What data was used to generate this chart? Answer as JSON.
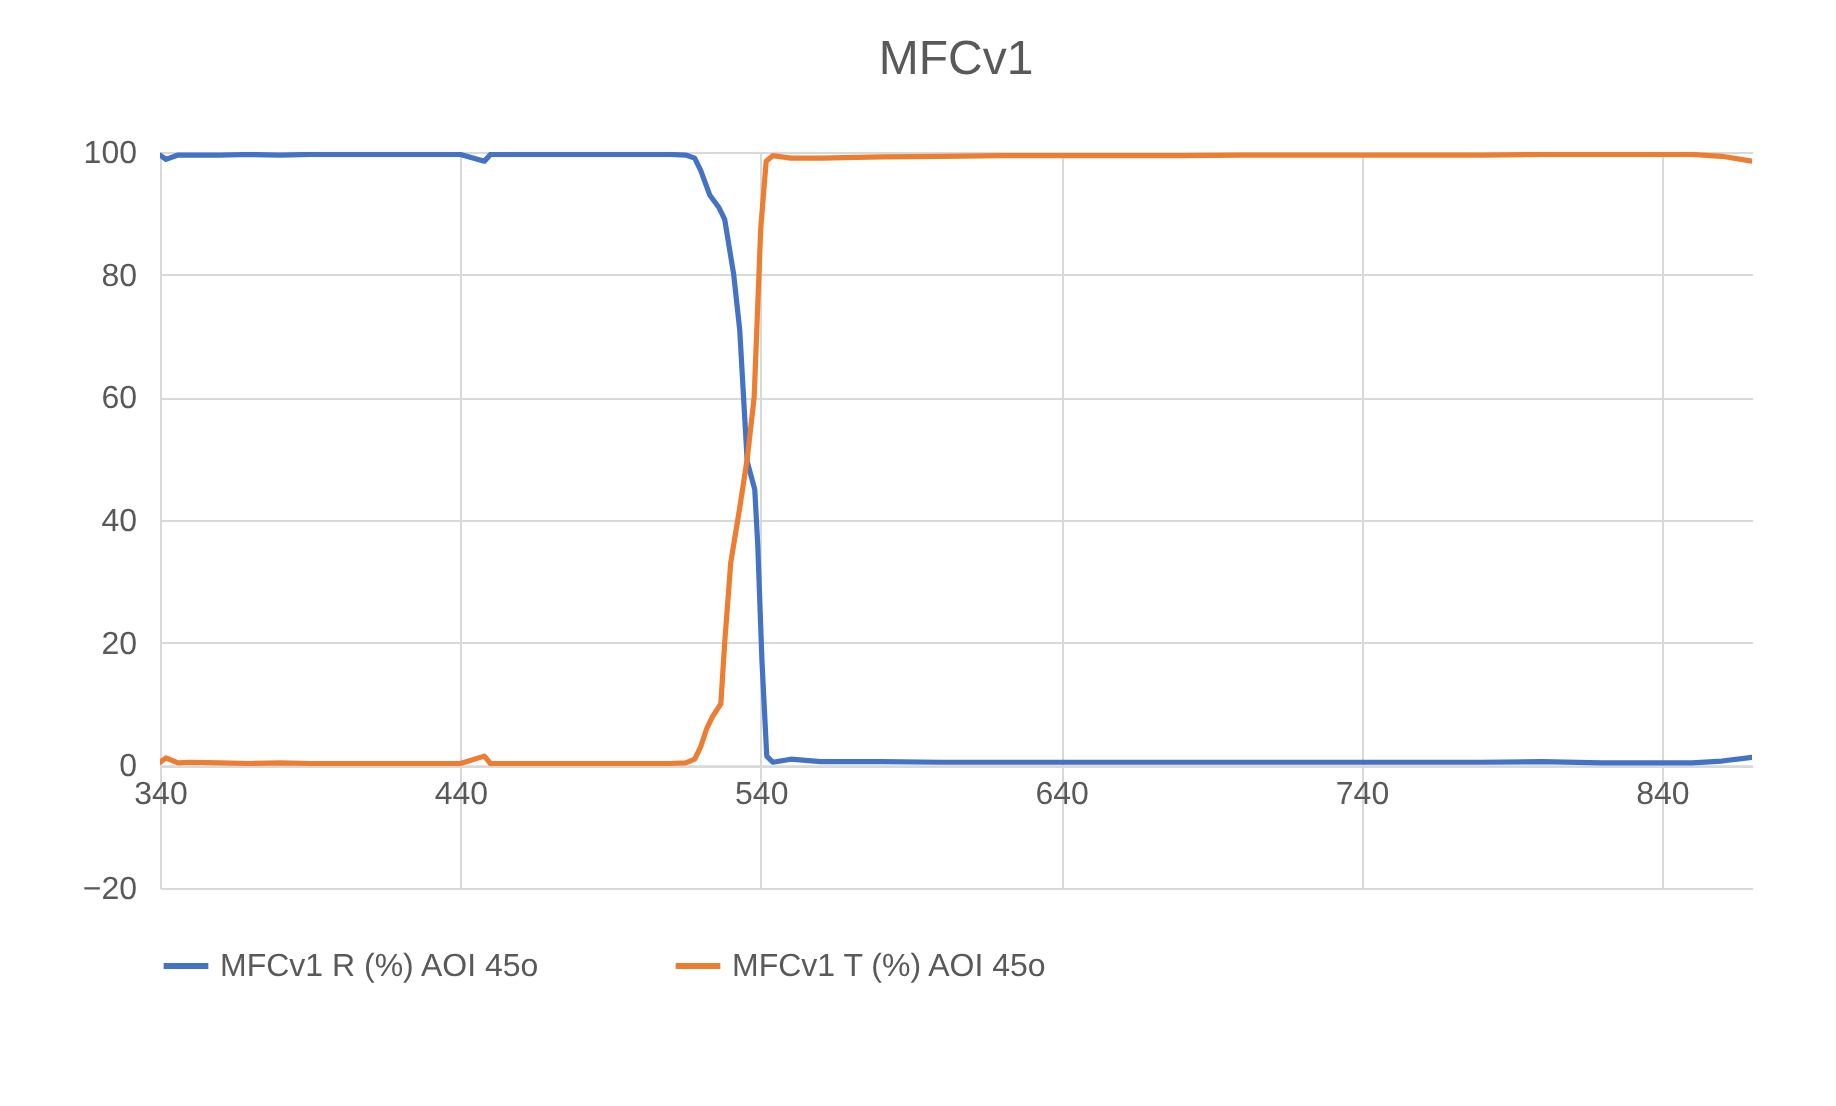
{
  "chart_data": {
    "type": "line",
    "title": "MFCv1",
    "xlim": [
      340,
      870
    ],
    "ylim": [
      -20,
      100
    ],
    "xticks": [
      340,
      440,
      540,
      640,
      740,
      840
    ],
    "yticks": [
      -20,
      0,
      20,
      40,
      60,
      80,
      100
    ],
    "grid": true,
    "legend": "bottom",
    "marker": "none",
    "line_style": "solid",
    "series": [
      {
        "name": "MFCv1 R (%) AOI 45o",
        "color": "#4472c4",
        "x": [
          340,
          342,
          346,
          350,
          360,
          370,
          380,
          390,
          400,
          410,
          420,
          430,
          440,
          448,
          450,
          460,
          470,
          480,
          490,
          500,
          510,
          515,
          518,
          520,
          523,
          526,
          528,
          531,
          533,
          535.5,
          538,
          539,
          540.4,
          542,
          544,
          550,
          560,
          580,
          600,
          620,
          640,
          660,
          680,
          700,
          720,
          740,
          760,
          780,
          800,
          820,
          840,
          850,
          860,
          870
        ],
        "values": [
          99.5,
          98.8,
          99.5,
          99.5,
          99.5,
          99.6,
          99.5,
          99.6,
          99.6,
          99.6,
          99.6,
          99.6,
          99.6,
          98.5,
          99.6,
          99.6,
          99.6,
          99.6,
          99.6,
          99.6,
          99.6,
          99.5,
          99,
          97,
          93,
          91,
          89,
          80,
          71,
          49.5,
          45,
          36,
          17,
          1.5,
          0.5,
          1,
          0.6,
          0.6,
          0.5,
          0.5,
          0.5,
          0.5,
          0.5,
          0.5,
          0.5,
          0.5,
          0.5,
          0.5,
          0.6,
          0.4,
          0.4,
          0.4,
          0.7,
          1.3
        ]
      },
      {
        "name": "MFCv1 T (%) AOI 45o",
        "color": "#ed7d31",
        "x": [
          340,
          342,
          346,
          350,
          360,
          370,
          380,
          390,
          400,
          410,
          420,
          430,
          440,
          448,
          450,
          460,
          470,
          480,
          490,
          500,
          510,
          515,
          518,
          520,
          522,
          524,
          526.7,
          528,
          530,
          533,
          535.5,
          537.8,
          539,
          540,
          541.8,
          544,
          550,
          560,
          580,
          600,
          620,
          640,
          660,
          680,
          700,
          720,
          740,
          760,
          780,
          800,
          820,
          840,
          850,
          860,
          870
        ],
        "values": [
          0.5,
          1.2,
          0.4,
          0.5,
          0.4,
          0.3,
          0.4,
          0.3,
          0.3,
          0.3,
          0.3,
          0.3,
          0.3,
          1.5,
          0.3,
          0.3,
          0.3,
          0.3,
          0.3,
          0.3,
          0.3,
          0.4,
          1,
          3,
          6,
          8,
          10,
          20,
          33,
          42,
          50,
          60,
          75,
          87.6,
          98.5,
          99.4,
          99,
          99,
          99.2,
          99.3,
          99.4,
          99.4,
          99.4,
          99.4,
          99.5,
          99.5,
          99.5,
          99.5,
          99.5,
          99.6,
          99.6,
          99.6,
          99.6,
          99.3,
          98.5
        ]
      }
    ]
  }
}
